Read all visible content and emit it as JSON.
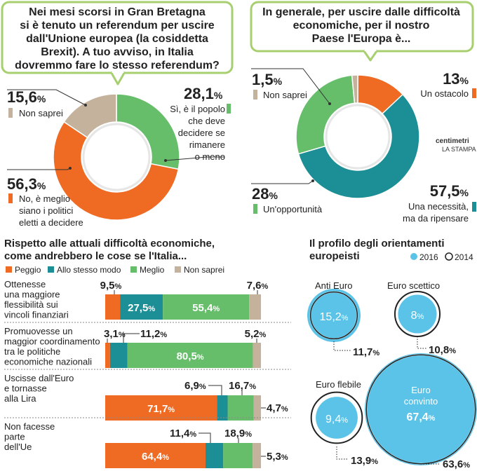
{
  "colors": {
    "orange": "#ef6a22",
    "teal": "#1c8e95",
    "green": "#67be6a",
    "beige": "#c4b29c",
    "cyan": "#5bc3e7",
    "callout_border": "#a8cf6f",
    "text": "#222222",
    "sep": "#888888"
  },
  "donut1": {
    "question": [
      "Nei mesi scorsi in Gran Bretagna",
      "si è tenuto un referendum per uscire",
      "dall'Unione europea (la cosiddetta",
      "Brexit). A tuo avviso, in Italia",
      "dovremmo fare lo stesso referendum?"
    ],
    "labels": [
      {
        "value": "28,1",
        "unit": "%",
        "text": [
          "Sì, è il popolo",
          "che deve",
          "decidere se",
          "rimanere",
          "o meno"
        ]
      },
      {
        "value": "56,3",
        "unit": "%",
        "text": [
          "No, è meglio",
          "siano i politici",
          "eletti a decidere"
        ]
      },
      {
        "value": "15,6",
        "unit": "%",
        "text": [
          "Non saprei"
        ]
      }
    ]
  },
  "donut2": {
    "question": [
      "In generale, per uscire dalle difficoltà",
      "economiche, per il nostro",
      "Paese l'Europa è..."
    ],
    "labels": [
      {
        "value": "13",
        "unit": "%",
        "text": [
          "Un ostacolo"
        ]
      },
      {
        "value": "57,5",
        "unit": "%",
        "text": [
          "Una necessità,",
          "ma da ripensare"
        ]
      },
      {
        "value": "28",
        "unit": "%",
        "text": [
          "Un'opportunità"
        ]
      },
      {
        "value": "1,5",
        "unit": "%",
        "text": [
          "Non saprei"
        ]
      }
    ],
    "logo": [
      "centimetri",
      "LA STAMPA"
    ]
  },
  "bars_section": {
    "title": [
      "Rispetto alle attuali difficoltà economiche,",
      "come andrebbero le cose se l'Italia..."
    ],
    "legend": [
      "Peggio",
      "Allo stesso modo",
      "Meglio",
      "Non saprei"
    ],
    "rows": [
      [
        "Ottenesse",
        "una maggiore",
        "flessibilità sui",
        "vincoli finanziari"
      ],
      [
        "Promuovesse un",
        "maggior coordinamento",
        "tra le politiche",
        "economiche nazionali"
      ],
      [
        "Uscisse dall'Euro",
        "e tornasse",
        "alla Lira"
      ],
      [
        "Non facesse",
        "parte",
        "dell'Ue"
      ]
    ]
  },
  "profile": {
    "title": [
      "Il profilo degli orientamenti",
      "europeisti"
    ],
    "legend": [
      "2016",
      "2014"
    ],
    "labels": [
      "Anti Euro",
      "Euro scettico",
      "Euro flebile",
      [
        "Euro",
        "convinto"
      ]
    ]
  },
  "chart_data": [
    {
      "type": "pie",
      "title": "Nei mesi scorsi in Gran Bretagna si è tenuto un referendum per uscire dall'Unione europea (la cosiddetta Brexit). A tuo avviso, in Italia dovremmo fare lo stesso referendum?",
      "categories": [
        "Sì, è il popolo che deve decidere se rimanere o meno",
        "No, è meglio siano i politici eletti a decidere",
        "Non saprei"
      ],
      "values": [
        28.1,
        56.3,
        15.6
      ]
    },
    {
      "type": "pie",
      "title": "In generale, per uscire dalle difficoltà economiche, per il nostro Paese l'Europa è...",
      "categories": [
        "Un ostacolo",
        "Una necessità, ma da ripensare",
        "Un'opportunità",
        "Non saprei"
      ],
      "values": [
        13,
        57.5,
        28,
        1.5
      ]
    },
    {
      "type": "bar",
      "stacked": true,
      "orientation": "horizontal",
      "title": "Rispetto alle attuali difficoltà economiche, come andrebbero le cose se l'Italia...",
      "categories": [
        "Ottenesse una maggiore flessibilità sui vincoli finanziari",
        "Promuovesse un maggior coordinamento tra le politiche economiche nazionali",
        "Uscisse dall'Euro e tornasse alla Lira",
        "Non facesse parte dell'Ue"
      ],
      "series": [
        {
          "name": "Peggio",
          "values": [
            9.5,
            3.1,
            71.7,
            64.4
          ]
        },
        {
          "name": "Allo stesso modo",
          "values": [
            27.5,
            11.2,
            6.9,
            11.4
          ]
        },
        {
          "name": "Meglio",
          "values": [
            55.4,
            80.5,
            16.7,
            18.9
          ]
        },
        {
          "name": "Non saprei",
          "values": [
            7.6,
            5.2,
            4.7,
            5.3
          ]
        }
      ]
    },
    {
      "type": "bubble",
      "title": "Il profilo degli orientamenti europeisti",
      "categories": [
        "Anti Euro",
        "Euro scettico",
        "Euro flebile",
        "Euro convinto"
      ],
      "series": [
        {
          "name": "2016",
          "values": [
            15.2,
            8,
            9.4,
            67.4
          ]
        },
        {
          "name": "2014",
          "values": [
            11.7,
            10.8,
            13.9,
            63.6
          ]
        }
      ]
    }
  ]
}
